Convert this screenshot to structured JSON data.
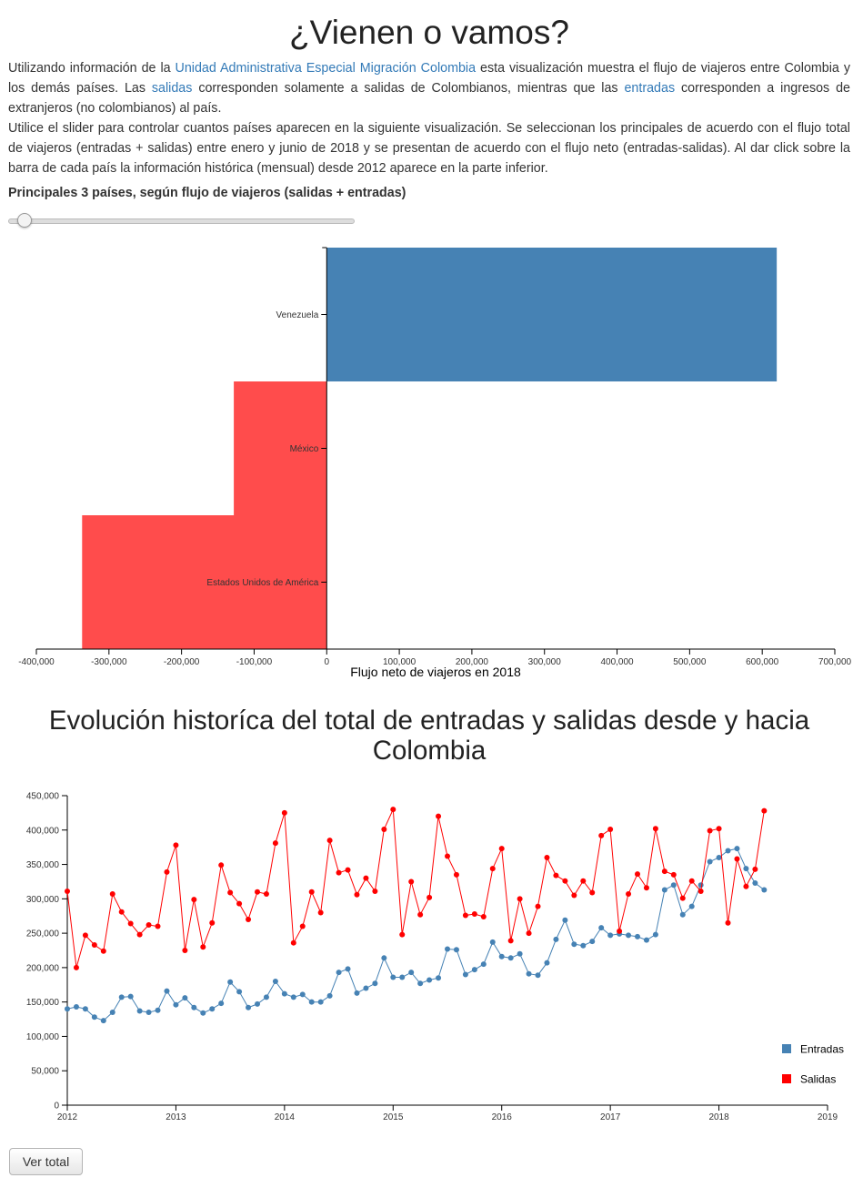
{
  "header": {
    "title": "¿Vienen o vamos?"
  },
  "intro": {
    "p1_a": "Utilizando información de la ",
    "p1_link": "Unidad Administrativa Especial Migración Colombia",
    "p1_b": " esta visualización muestra el flujo de viajeros entre Colombia y los demás países. Las ",
    "p1_salidas": "salidas",
    "p1_c": " corresponden solamente a salidas de Colombianos, mientras que las ",
    "p1_entradas": "entradas",
    "p1_d": " corresponden a ingresos de extranjeros (no colombianos) al país.",
    "p2": "Utilice el slider para controlar cuantos países aparecen en la siguiente visualización. Se seleccionan los principales de acuerdo con el flujo total de viajeros (entradas + salidas) entre enero y junio de 2018 y se presentan de acuerdo con el flujo neto (entradas-salidas). Al dar click sobre la barra de cada país la información histórica (mensual) desde 2012 aparece en la parte inferior."
  },
  "slider": {
    "label": "Principales 3 países, según flujo de viajeros (salidas + entradas)",
    "value": 3
  },
  "line_section": {
    "title": "Evolución historíca del total de entradas y salidas desde y hacia Colombia"
  },
  "button": {
    "label": "Ver total"
  },
  "colors": {
    "positive": "#4682b4",
    "negative": "#ff4c4c",
    "entradas": "#4682b4",
    "salidas": "#ff0000",
    "link": "#337ab7"
  },
  "chart_data": [
    {
      "type": "bar",
      "orientation": "horizontal",
      "categories": [
        "Venezuela",
        "México",
        "Estados Unidos de América"
      ],
      "values": [
        620000,
        -128000,
        -337000
      ],
      "xlabel": "Flujo neto de viajeros en 2018",
      "xlim": [
        -400000,
        700000
      ],
      "xticks": [
        "-400,000",
        "-300,000",
        "-200,000",
        "-100,000",
        "0",
        "100,000",
        "200,000",
        "300,000",
        "400,000",
        "500,000",
        "600,000",
        "700,000"
      ],
      "xtick_values": [
        -400000,
        -300000,
        -200000,
        -100000,
        0,
        100000,
        200000,
        300000,
        400000,
        500000,
        600000,
        700000
      ]
    },
    {
      "type": "line",
      "x_start": "2012-01",
      "x_end": "2018-06",
      "x_interval": "monthly",
      "xlim": [
        "2012-01",
        "2019-01"
      ],
      "xticks": [
        "2012",
        "2013",
        "2014",
        "2015",
        "2016",
        "2017",
        "2018",
        "2019"
      ],
      "ylim": [
        0,
        450000
      ],
      "yticks": [
        "0",
        "50,000",
        "100,000",
        "150,000",
        "200,000",
        "250,000",
        "300,000",
        "350,000",
        "400,000",
        "450,000"
      ],
      "ytick_values": [
        0,
        50000,
        100000,
        150000,
        200000,
        250000,
        300000,
        350000,
        400000,
        450000
      ],
      "legend": "right",
      "series": [
        {
          "name": "Entradas",
          "values": [
            140000,
            143000,
            140000,
            128000,
            123000,
            135000,
            157000,
            158000,
            137000,
            135000,
            138000,
            166000,
            146000,
            156000,
            142000,
            134000,
            140000,
            148000,
            179000,
            165000,
            142000,
            147000,
            157000,
            180000,
            162000,
            157000,
            161000,
            150000,
            150000,
            159000,
            193000,
            198000,
            163000,
            170000,
            177000,
            214000,
            186000,
            186000,
            193000,
            177000,
            182000,
            185000,
            227000,
            226000,
            190000,
            197000,
            205000,
            237000,
            216000,
            214000,
            220000,
            191000,
            189000,
            207000,
            241000,
            269000,
            234000,
            232000,
            238000,
            258000,
            247000,
            249000,
            247000,
            245000,
            240000,
            248000,
            313000,
            320000,
            277000,
            289000,
            320000,
            354000,
            360000,
            370000,
            373000,
            344000,
            323000,
            313000
          ]
        },
        {
          "name": "Salidas",
          "values": [
            311000,
            200000,
            247000,
            233000,
            224000,
            307000,
            281000,
            264000,
            248000,
            262000,
            260000,
            339000,
            378000,
            225000,
            299000,
            230000,
            265000,
            349000,
            309000,
            293000,
            270000,
            310000,
            307000,
            381000,
            425000,
            236000,
            260000,
            310000,
            280000,
            385000,
            338000,
            342000,
            306000,
            330000,
            311000,
            401000,
            430000,
            248000,
            325000,
            277000,
            302000,
            420000,
            362000,
            335000,
            276000,
            278000,
            274000,
            344000,
            373000,
            239000,
            300000,
            250000,
            289000,
            360000,
            334000,
            326000,
            305000,
            326000,
            309000,
            392000,
            401000,
            253000,
            307000,
            336000,
            316000,
            402000,
            340000,
            335000,
            301000,
            326000,
            311000,
            399000,
            402000,
            265000,
            358000,
            318000,
            343000,
            428000
          ]
        }
      ]
    }
  ]
}
